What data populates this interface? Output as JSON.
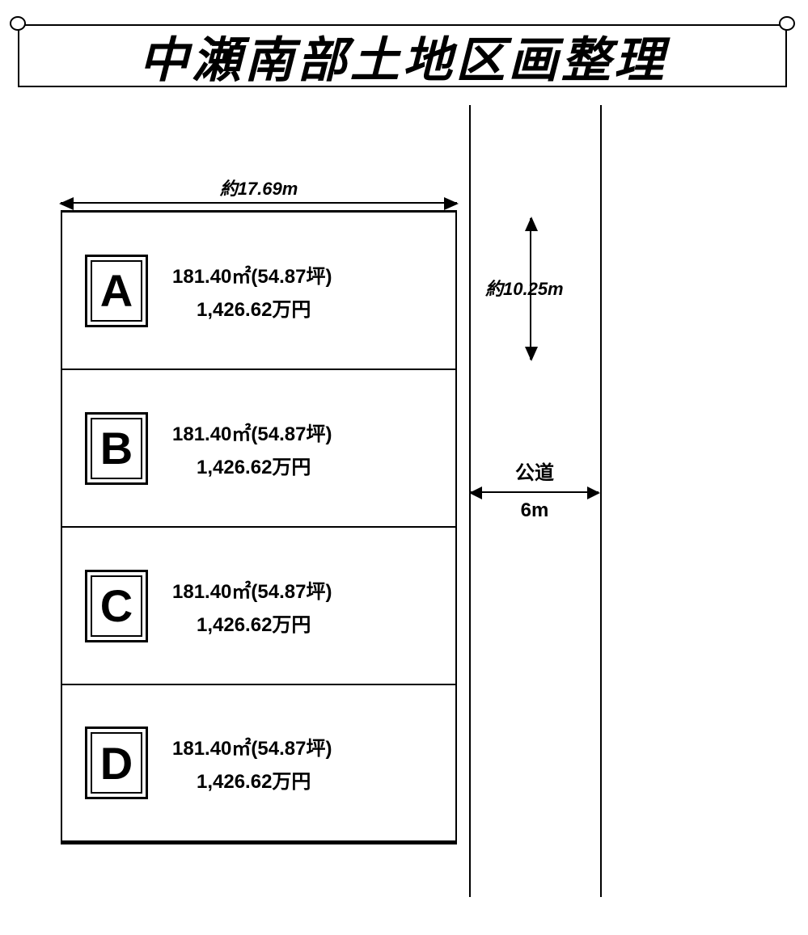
{
  "banner": {
    "title": "中瀬南部土地区画整理"
  },
  "dimensions": {
    "width_label": "約17.69m",
    "depth_label": "約10.25m",
    "road_label_1": "公道",
    "road_label_2": "6m"
  },
  "lots": [
    {
      "label": "A",
      "area": "181.40㎡(54.87坪)",
      "price": "1,426.62万円"
    },
    {
      "label": "B",
      "area": "181.40㎡(54.87坪)",
      "price": "1,426.62万円"
    },
    {
      "label": "C",
      "area": "181.40㎡(54.87坪)",
      "price": "1,426.62万円"
    },
    {
      "label": "D",
      "area": "181.40㎡(54.87坪)",
      "price": "1,426.62万円"
    }
  ],
  "styling": {
    "type": "land-plot-diagram",
    "background_color": "#ffffff",
    "line_color": "#000000",
    "banner_fontsize": 60,
    "banner_font_style": "italic bold",
    "lot_label_fontsize": 56,
    "lot_info_fontsize": 24,
    "dim_label_fontsize": 22,
    "lot_row_height": 195,
    "lot_block_width": 490,
    "road_gap_width": 160,
    "lot_count": 4,
    "lot_label_box_border": "triple",
    "arrow_style": "filled-triangle"
  }
}
